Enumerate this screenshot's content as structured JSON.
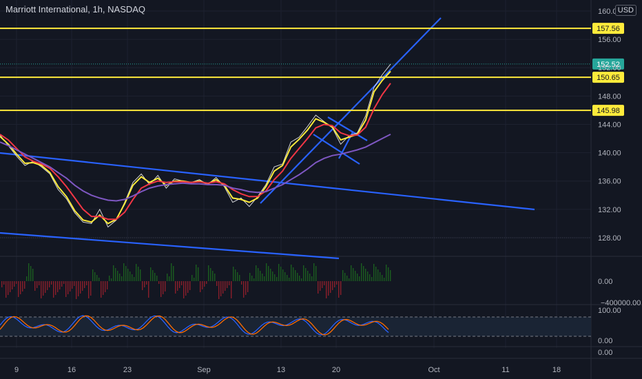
{
  "title": "Marriott International, 1h, NASDAQ",
  "currency": "USD",
  "chart_data": {
    "type": "line",
    "price_axis": {
      "ylim": [
        126,
        160.5
      ],
      "ticks": [
        "160.00",
        "156.00",
        "152.00",
        "148.00",
        "144.00",
        "140.00",
        "136.00",
        "132.00",
        "128.00"
      ],
      "tick_values": [
        160,
        156,
        152,
        148,
        144,
        140,
        136,
        132,
        128
      ]
    },
    "time_axis": {
      "labels": [
        "9",
        "16",
        "23",
        "Sep",
        "13",
        "20",
        "Oct",
        "11",
        "18"
      ]
    },
    "horizontal_levels": [
      {
        "value": 157.56,
        "label": "157.56",
        "color": "#ffeb3b"
      },
      {
        "value": 150.65,
        "label": "150.65",
        "color": "#ffeb3b"
      },
      {
        "value": 145.98,
        "label": "145.98",
        "color": "#ffeb3b"
      }
    ],
    "last_price": {
      "value": 152.52,
      "label": "152.52",
      "color": "#26a69a"
    },
    "series": [
      {
        "color": "#f7f7f7",
        "values": [
          142.5,
          141.0,
          139.5,
          138.2,
          138.8,
          138.0,
          137.0,
          134.8,
          133.5,
          131.5,
          130.2,
          130.0,
          132.0,
          129.5,
          130.5,
          133.0,
          135.8,
          137.0,
          135.5,
          136.8,
          135.0,
          136.3,
          136.0,
          135.8,
          136.2,
          135.5,
          136.5,
          135.2,
          133.0,
          133.6,
          132.4,
          133.8,
          135.5,
          138.0,
          138.4,
          141.5,
          142.2,
          143.7,
          145.3,
          144.4,
          143.5,
          141.2,
          142.4,
          142.8,
          145.2,
          149.2,
          151.0,
          152.5
        ]
      },
      {
        "color": "#ffeb3b",
        "values": [
          142.3,
          141.2,
          139.8,
          138.5,
          138.6,
          138.2,
          137.2,
          135.2,
          133.8,
          131.8,
          130.5,
          130.2,
          131.2,
          130.0,
          130.6,
          132.8,
          135.4,
          136.6,
          135.8,
          136.4,
          135.4,
          136.0,
          136.0,
          135.8,
          136.0,
          135.6,
          136.2,
          135.4,
          133.6,
          133.4,
          133.0,
          133.6,
          135.2,
          137.4,
          138.2,
          140.8,
          141.9,
          143.2,
          144.8,
          144.3,
          143.6,
          141.8,
          142.2,
          142.6,
          144.6,
          148.6,
          150.2,
          151.5
        ]
      },
      {
        "color": "#f23645",
        "values": [
          142.6,
          141.8,
          140.6,
          139.4,
          138.8,
          138.4,
          137.8,
          136.6,
          135.2,
          133.6,
          132.0,
          131.0,
          131.0,
          130.6,
          130.6,
          131.6,
          133.4,
          135.0,
          135.6,
          136.0,
          135.8,
          135.9,
          135.9,
          135.8,
          135.9,
          135.7,
          135.9,
          135.6,
          134.8,
          134.2,
          133.8,
          133.8,
          134.6,
          136.2,
          137.4,
          139.2,
          140.6,
          142.0,
          143.5,
          144.0,
          143.8,
          142.8,
          142.4,
          142.5,
          143.6,
          146.2,
          148.2,
          149.8
        ]
      },
      {
        "color": "#7e57c2",
        "values": [
          141.5,
          141.0,
          140.4,
          139.8,
          139.2,
          138.6,
          138.0,
          137.2,
          136.4,
          135.4,
          134.6,
          134.0,
          133.6,
          133.3,
          133.2,
          133.4,
          133.9,
          134.5,
          135.0,
          135.3,
          135.5,
          135.6,
          135.7,
          135.6,
          135.6,
          135.5,
          135.5,
          135.4,
          135.0,
          134.8,
          134.5,
          134.4,
          134.5,
          135.0,
          135.5,
          136.2,
          136.9,
          137.7,
          138.6,
          139.2,
          139.6,
          139.8,
          140.1,
          140.4,
          140.8,
          141.4,
          142.0,
          142.6
        ]
      }
    ],
    "stoch_ticks": [
      "100.00",
      "0.00"
    ],
    "volume_ticks": [
      "0.00",
      "−400000.00"
    ],
    "bottom_pane_tick": "0.00"
  }
}
